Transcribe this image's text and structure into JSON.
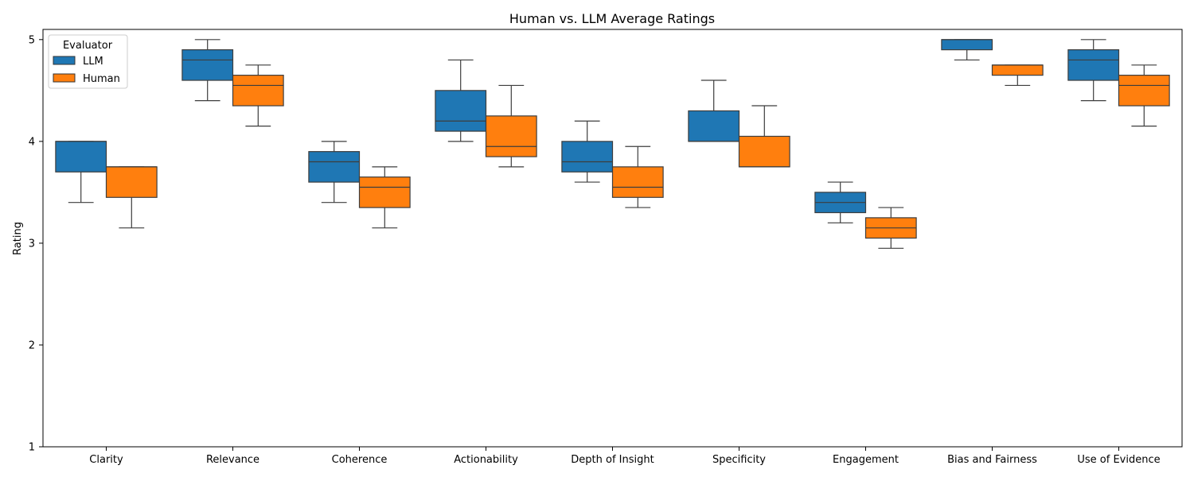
{
  "chart_data": {
    "type": "box",
    "title": "Human vs. LLM Average Ratings",
    "xlabel": "",
    "ylabel": "Rating",
    "ylim": [
      1,
      5.1
    ],
    "yticks": [
      "1",
      "2",
      "3",
      "4",
      "5"
    ],
    "categories": [
      "Clarity",
      "Relevance",
      "Coherence",
      "Actionability",
      "Depth of Insight",
      "Specificity",
      "Engagement",
      "Bias and Fairness",
      "Use of Evidence"
    ],
    "legend": {
      "title": "Evaluator",
      "placement": "top-left"
    },
    "series": [
      {
        "name": "LLM",
        "color": "#1f77b4",
        "boxes": [
          {
            "min": 3.4,
            "q1": 3.7,
            "median": 4.0,
            "q3": 4.0,
            "max": 4.0
          },
          {
            "min": 4.4,
            "q1": 4.6,
            "median": 4.8,
            "q3": 4.9,
            "max": 5.0
          },
          {
            "min": 3.4,
            "q1": 3.6,
            "median": 3.8,
            "q3": 3.9,
            "max": 4.0
          },
          {
            "min": 4.0,
            "q1": 4.1,
            "median": 4.2,
            "q3": 4.5,
            "max": 4.8
          },
          {
            "min": 3.6,
            "q1": 3.7,
            "median": 3.8,
            "q3": 4.0,
            "max": 4.2
          },
          {
            "min": 4.0,
            "q1": 4.0,
            "median": 4.0,
            "q3": 4.3,
            "max": 4.6
          },
          {
            "min": 3.2,
            "q1": 3.3,
            "median": 3.4,
            "q3": 3.5,
            "max": 3.6
          },
          {
            "min": 4.8,
            "q1": 4.9,
            "median": 5.0,
            "q3": 5.0,
            "max": 5.0
          },
          {
            "min": 4.4,
            "q1": 4.6,
            "median": 4.8,
            "q3": 4.9,
            "max": 5.0
          }
        ]
      },
      {
        "name": "Human",
        "color": "#ff7f0e",
        "boxes": [
          {
            "min": 3.15,
            "q1": 3.45,
            "median": 3.75,
            "q3": 3.75,
            "max": 3.75
          },
          {
            "min": 4.15,
            "q1": 4.35,
            "median": 4.55,
            "q3": 4.65,
            "max": 4.75
          },
          {
            "min": 3.15,
            "q1": 3.35,
            "median": 3.55,
            "q3": 3.65,
            "max": 3.75
          },
          {
            "min": 3.75,
            "q1": 3.85,
            "median": 3.95,
            "q3": 4.25,
            "max": 4.55
          },
          {
            "min": 3.35,
            "q1": 3.45,
            "median": 3.55,
            "q3": 3.75,
            "max": 3.95
          },
          {
            "min": 3.75,
            "q1": 3.75,
            "median": 3.75,
            "q3": 4.05,
            "max": 4.35
          },
          {
            "min": 2.95,
            "q1": 3.05,
            "median": 3.15,
            "q3": 3.25,
            "max": 3.35
          },
          {
            "min": 4.55,
            "q1": 4.65,
            "median": 4.75,
            "q3": 4.75,
            "max": 4.75
          },
          {
            "min": 4.15,
            "q1": 4.35,
            "median": 4.55,
            "q3": 4.65,
            "max": 4.75
          }
        ]
      }
    ]
  }
}
